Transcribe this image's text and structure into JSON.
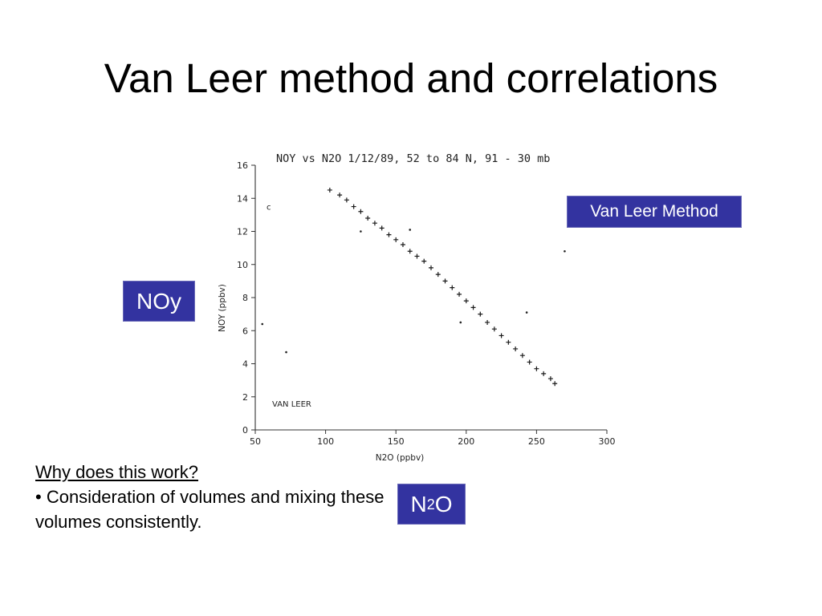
{
  "slide": {
    "title": "Van Leer method and correlations"
  },
  "labels": {
    "method_tag": "Van Leer Method",
    "noy_tag": "NOy",
    "n2o_tag": {
      "prefix": "N",
      "subscript": "2",
      "suffix": "O"
    }
  },
  "note": {
    "heading": "Why does this work?",
    "bullet": "• Consideration of volumes and mixing these volumes consistently."
  },
  "colors": {
    "tag_background": "#3333a0",
    "tag_text": "#ffffff"
  },
  "chart_data": {
    "type": "scatter",
    "title": "NOY vs N2O 1/12/89, 52 to 84 N, 91 - 30 mb",
    "xlabel": "N2O (ppbv)",
    "ylabel": "NOY (ppbv)",
    "xlim": [
      50,
      300
    ],
    "ylim": [
      0,
      16
    ],
    "x_ticks": [
      50,
      100,
      150,
      200,
      250,
      300
    ],
    "y_ticks": [
      0,
      2,
      4,
      6,
      8,
      10,
      12,
      14,
      16
    ],
    "x_tick_labels": [
      "50",
      "100",
      "150",
      "200",
      "250",
      "300"
    ],
    "y_tick_labels": [
      "0",
      "2",
      "4",
      "6",
      "8",
      "10",
      "12",
      "14",
      "16"
    ],
    "annotations": [
      {
        "text": "c",
        "x": 58,
        "y": 13.3
      },
      {
        "text": "VAN LEER",
        "x": 62,
        "y": 1.4
      }
    ],
    "series": [
      {
        "marker": "plus",
        "x": [
          103,
          110,
          115,
          120,
          125,
          130,
          135,
          140,
          145,
          150,
          155,
          160,
          165,
          170,
          175,
          180,
          185,
          190,
          195,
          200,
          205,
          210,
          215,
          220,
          225,
          230,
          235,
          240,
          245,
          250,
          255,
          260,
          263
        ],
        "y": [
          14.5,
          14.2,
          13.9,
          13.5,
          13.2,
          12.8,
          12.5,
          12.2,
          11.8,
          11.5,
          11.2,
          10.8,
          10.5,
          10.2,
          9.8,
          9.4,
          9.0,
          8.6,
          8.2,
          7.8,
          7.4,
          7.0,
          6.5,
          6.1,
          5.7,
          5.3,
          4.9,
          4.5,
          4.1,
          3.7,
          3.4,
          3.1,
          2.8
        ]
      }
    ],
    "outliers": {
      "x": [
        72,
        125,
        243,
        160,
        196,
        270,
        55
      ],
      "y": [
        4.7,
        12.0,
        7.1,
        12.1,
        6.5,
        10.8,
        6.4
      ]
    }
  }
}
